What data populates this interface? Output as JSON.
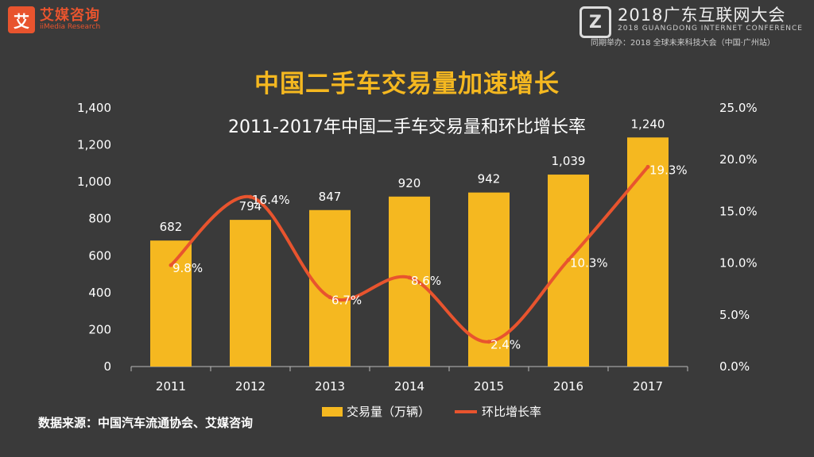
{
  "brand": {
    "logo_glyph": "艾",
    "name": "艾媒咨询",
    "sub": "iiMedia Research",
    "color": "#e8542e"
  },
  "conference": {
    "logo_glyph": "Z",
    "title": "2018广东互联网大会",
    "subtitle": "2018 GUANGDONG INTERNET CONFERENCE",
    "host": "同期举办：2018 全球未来科技大会（中国·广州站）"
  },
  "page": {
    "title": "中国二手车交易量加速增长"
  },
  "source_note": "数据来源：中国汽车流通协会、艾媒咨询",
  "chart_data": {
    "type": "bar",
    "title": "2011-2017年中国二手车交易量和环比增长率",
    "categories": [
      "2011",
      "2012",
      "2013",
      "2014",
      "2015",
      "2016",
      "2017"
    ],
    "series": [
      {
        "name": "交易量（万辆）",
        "type": "bar",
        "axis": "left",
        "color": "#f5b820",
        "values": [
          682,
          794,
          847,
          920,
          942,
          1039,
          1240
        ],
        "labels": [
          "682",
          "794",
          "847",
          "920",
          "942",
          "1,039",
          "1,240"
        ]
      },
      {
        "name": "环比增长率",
        "type": "line",
        "axis": "right",
        "color": "#e8542e",
        "values": [
          9.8,
          16.4,
          6.7,
          8.6,
          2.4,
          10.3,
          19.3
        ],
        "labels": [
          "9.8%",
          "16.4%",
          "6.7%",
          "8.6%",
          "2.4%",
          "10.3%",
          "19.3%"
        ]
      }
    ],
    "y_left": {
      "lim": [
        0,
        1400
      ],
      "ticks": [
        "0",
        "200",
        "400",
        "600",
        "800",
        "1,000",
        "1,200",
        "1,400"
      ]
    },
    "y_right": {
      "lim": [
        0,
        25
      ],
      "ticks": [
        "0.0%",
        "5.0%",
        "10.0%",
        "15.0%",
        "20.0%",
        "25.0%"
      ]
    },
    "grid": false,
    "legend": "bottom"
  }
}
